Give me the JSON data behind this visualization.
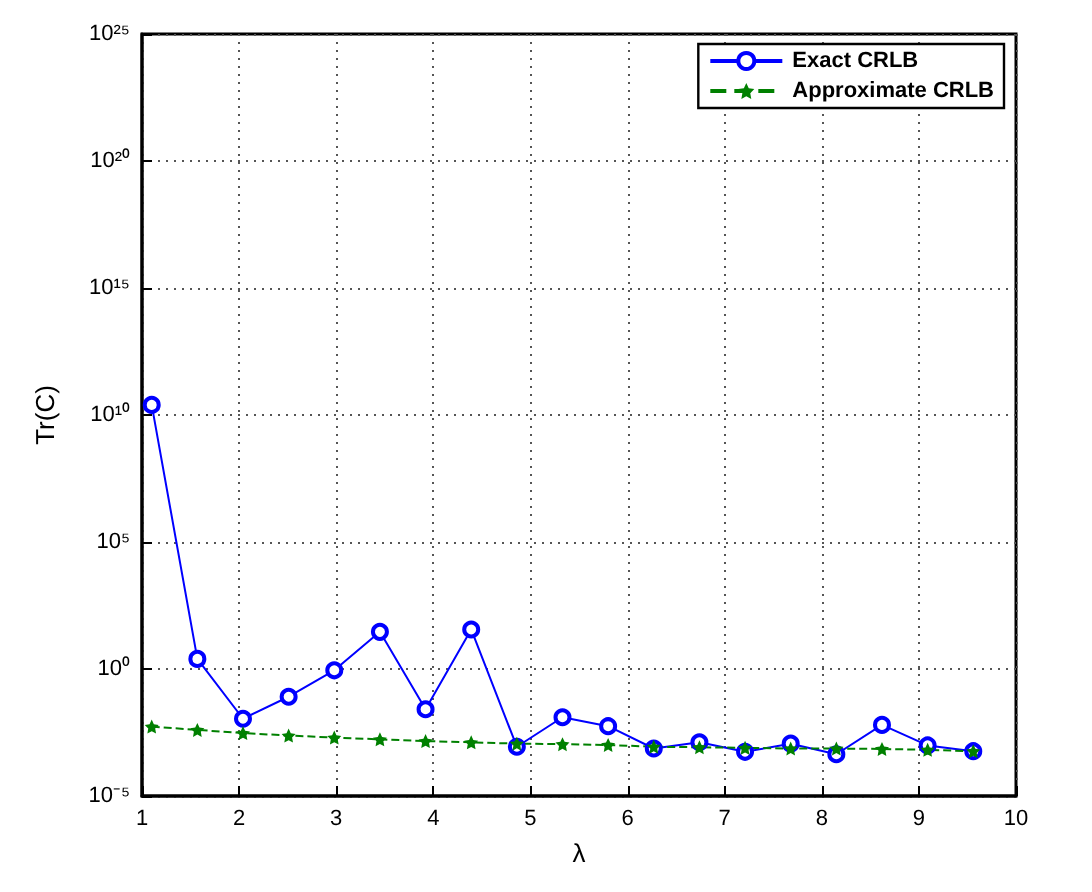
{
  "chart_data": {
    "type": "line",
    "xlabel": "λ",
    "ylabel": "Tr(C)",
    "log": "y",
    "grid": true,
    "legend": "top right",
    "xlim": [
      1,
      10
    ],
    "xticks": [
      1,
      2,
      3,
      4,
      5,
      6,
      7,
      8,
      9,
      10
    ],
    "ylim": [
      1e-05,
      1e+25
    ],
    "yticks": [
      {
        "value": 1e-05,
        "label": "10⁻⁵"
      },
      {
        "value": 1,
        "label": "10⁰"
      },
      {
        "value": 100000.0,
        "label": "10⁵"
      },
      {
        "value": 10000000000.0,
        "label": "10¹⁰"
      },
      {
        "value": 1000000000000000.0,
        "label": "10¹⁵"
      },
      {
        "value": 1e+20,
        "label": "10²⁰"
      },
      {
        "value": 1e+25,
        "label": "10²⁵"
      }
    ],
    "series": [
      {
        "name": "Exact CRLB",
        "color": "#0000ff",
        "marker": "circle",
        "line_style": "solid",
        "x": [
          1.1,
          1.57,
          2.04,
          2.51,
          2.98,
          3.45,
          3.92,
          4.39,
          4.86,
          5.33,
          5.8,
          6.27,
          6.74,
          7.21,
          7.68,
          8.15,
          8.62,
          9.09,
          9.56
        ],
        "values": [
          25000000000.0,
          2.5,
          0.011,
          0.081,
          0.89,
          29,
          0.026,
          36,
          0.00087,
          0.0126,
          0.0056,
          0.00074,
          0.0013,
          0.00055,
          0.00115,
          0.00044,
          0.0063,
          0.00098,
          0.00058
        ]
      },
      {
        "name": "Approximate CRLB",
        "color": "#008000",
        "marker": "star",
        "line_style": "dashed",
        "x": [
          1.1,
          1.57,
          2.04,
          2.51,
          2.98,
          3.45,
          3.92,
          4.39,
          4.86,
          5.33,
          5.8,
          6.27,
          6.74,
          7.21,
          7.68,
          8.15,
          8.62,
          9.09,
          9.56
        ],
        "values": [
          0.0054,
          0.004,
          0.003,
          0.0024,
          0.002,
          0.0017,
          0.00145,
          0.0013,
          0.00115,
          0.0011,
          0.00102,
          0.00087,
          0.00083,
          0.00079,
          0.00074,
          0.00074,
          0.00071,
          0.00066,
          0.00058
        ]
      }
    ]
  }
}
